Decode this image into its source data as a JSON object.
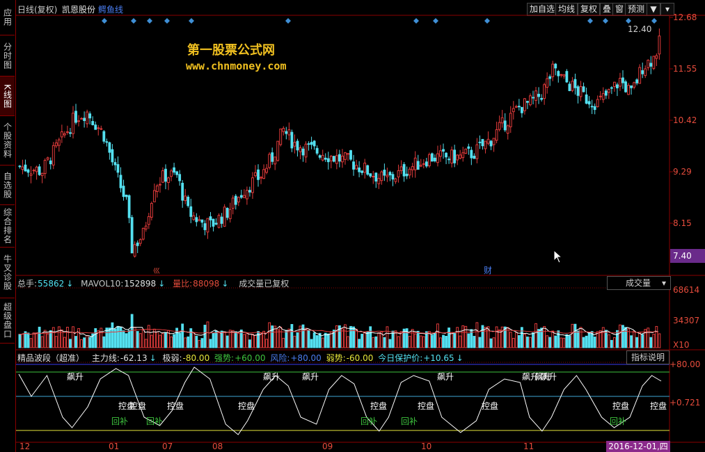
{
  "sidebar": {
    "items": [
      {
        "label": "应用",
        "active": false
      },
      {
        "label": "分时图",
        "active": false
      },
      {
        "label": "K线图",
        "active": true
      },
      {
        "label": "个股资料",
        "active": false
      },
      {
        "label": "自选股",
        "active": false
      },
      {
        "label": "综合排名",
        "active": false
      },
      {
        "label": "牛叉诊股",
        "active": false
      },
      {
        "label": "超级盘口",
        "active": false
      }
    ]
  },
  "header": {
    "chart_type": "日线(复权)",
    "stock_name": "凯恩股份",
    "indicator": "鳄鱼线",
    "buttons": [
      "加自选",
      "均线",
      "复权",
      "叠",
      "窗",
      "预测"
    ],
    "menu_icon": "triangle-menu-icon"
  },
  "watermark": {
    "title": "第一股票公式网",
    "url": "www.chnmoney.com"
  },
  "price_axis": {
    "labels": [
      "12.68",
      "11.55",
      "10.42",
      "9.29",
      "8.15"
    ],
    "current_price": "7.40",
    "high_annotation": "12.40"
  },
  "markers": {
    "left_icon": "巛",
    "right_icon": "财"
  },
  "volume_panel": {
    "total_label": "总手:",
    "total_value": "55862",
    "mavol_label": "MAVOL10:",
    "mavol_value": "152898",
    "ratio_label": "量比:",
    "ratio_value": "88098",
    "note": "成交量已复权",
    "selector": "成交量",
    "axis": [
      "68614",
      "34307"
    ],
    "unit": "X10"
  },
  "indicator_panel": {
    "name": "精品波段（超准）",
    "main_label": "主力线:",
    "main_value": "-62.13",
    "extreme_weak_label": "极弱:",
    "extreme_weak_value": "-80.00",
    "strong_label": "强势:",
    "strong_value": "+60.00",
    "risk_label": "风险:",
    "risk_value": "+80.00",
    "weak_label": "弱势:",
    "weak_value": "-60.00",
    "protect_label": "今日保护价:",
    "protect_value": "+10.65",
    "help_button": "指标说明",
    "axis": [
      "+80.00",
      "+0.721"
    ],
    "signals": [
      {
        "text": "飙升",
        "type": "rise"
      },
      {
        "text": "飙升",
        "type": "rise"
      },
      {
        "text": "飙升",
        "type": "rise"
      },
      {
        "text": "飙升",
        "type": "rise"
      },
      {
        "text": "飙升",
        "type": "rise"
      },
      {
        "text": "飙升",
        "type": "rise"
      },
      {
        "text": "飙升",
        "type": "rise"
      },
      {
        "text": "控盘",
        "type": "control"
      },
      {
        "text": "控盘",
        "type": "control"
      },
      {
        "text": "控盘",
        "type": "control"
      },
      {
        "text": "控盘",
        "type": "control"
      },
      {
        "text": "控盘",
        "type": "control"
      },
      {
        "text": "控盘",
        "type": "control"
      },
      {
        "text": "控盘",
        "type": "control"
      },
      {
        "text": "控盘",
        "type": "control"
      },
      {
        "text": "控盘",
        "type": "control"
      },
      {
        "text": "回补",
        "type": "refill"
      },
      {
        "text": "回补",
        "type": "refill"
      },
      {
        "text": "回补",
        "type": "refill"
      },
      {
        "text": "回补",
        "type": "refill"
      },
      {
        "text": "回补",
        "type": "refill"
      }
    ]
  },
  "x_axis": {
    "labels": [
      "12",
      "01",
      "07",
      "08",
      "09",
      "10",
      "11"
    ],
    "current_date": "2016-12-01,四"
  },
  "colors": {
    "up": "#e23b3b",
    "down": "#54e0f0",
    "axis": "#8b0000",
    "yellow": "#f0c020",
    "green": "#3ec43e"
  }
}
